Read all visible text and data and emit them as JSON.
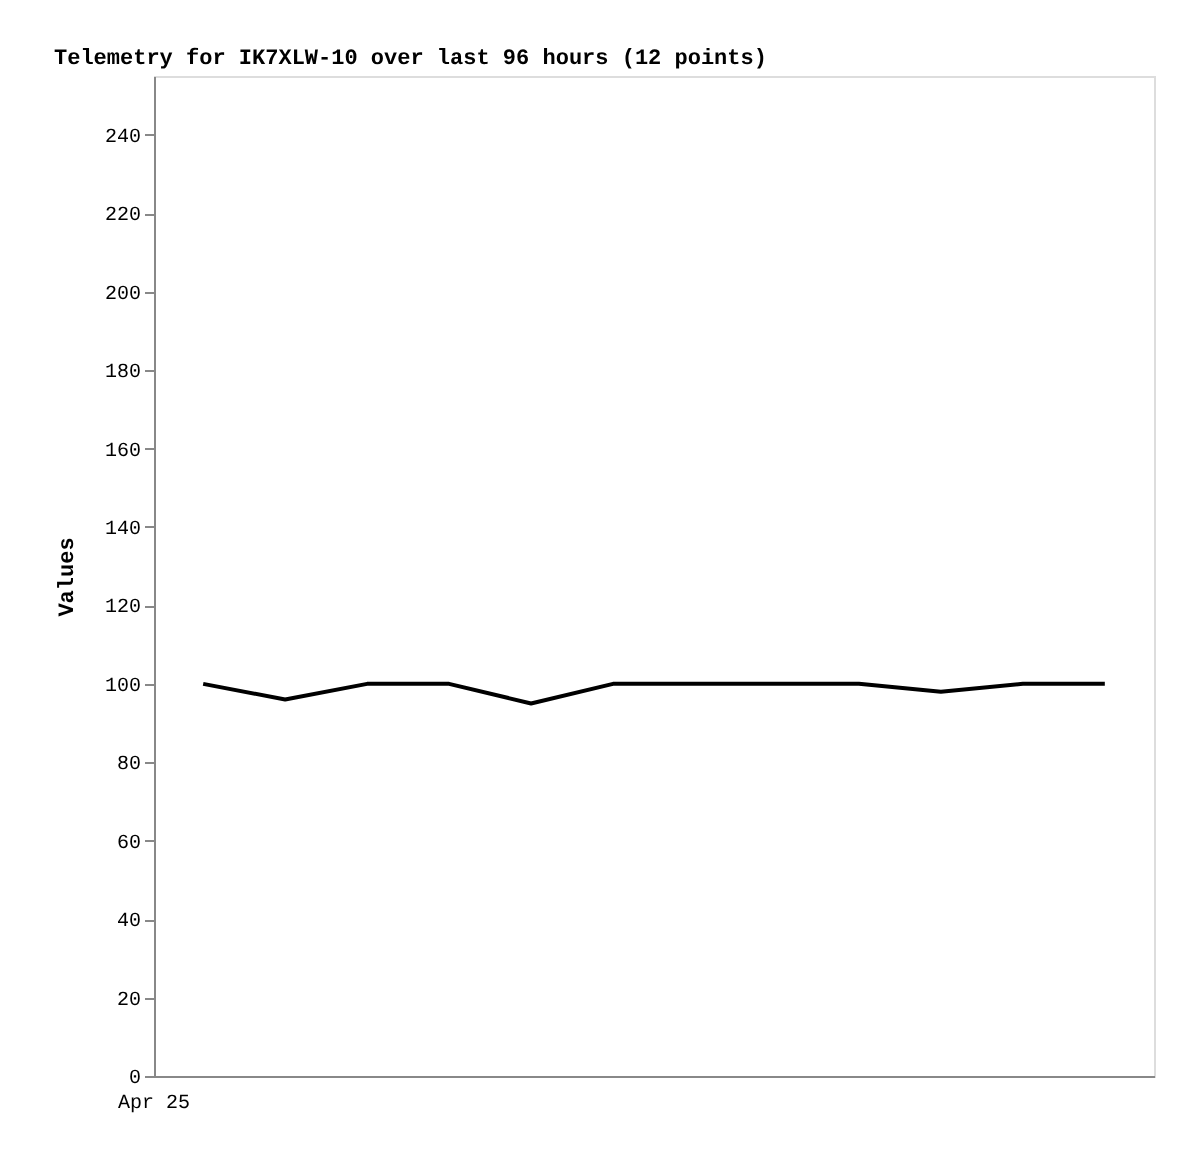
{
  "chart_data": {
    "type": "line",
    "title": "Telemetry for IK7XLW-10 over last 96 hours (12 points)",
    "ylabel": "Values",
    "categories": [
      null,
      null,
      null,
      null,
      null,
      null,
      null,
      null,
      null,
      null,
      null,
      null
    ],
    "series": [
      {
        "color": "#000000",
        "values": [
          100,
          96,
          100,
          100,
          95,
          100,
          100,
          100,
          100,
          98,
          100,
          100
        ]
      }
    ],
    "ylim": [
      0,
      255
    ],
    "yticks": [
      0,
      20,
      40,
      60,
      80,
      100,
      120,
      140,
      160,
      180,
      200,
      220,
      240
    ],
    "annotations": [
      "Apr 25"
    ],
    "marker": "none",
    "line_style": "solid"
  }
}
